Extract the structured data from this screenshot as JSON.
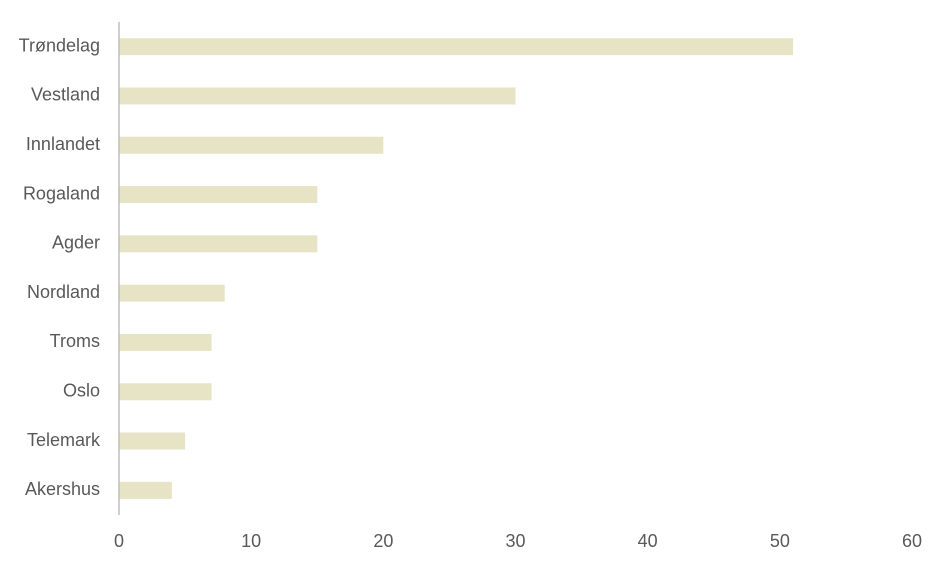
{
  "chart_data": {
    "type": "bar",
    "orientation": "horizontal",
    "categories": [
      "Trøndelag",
      "Vestland",
      "Innlandet",
      "Rogaland",
      "Agder",
      "Nordland",
      "Troms",
      "Oslo",
      "Telemark",
      "Akershus"
    ],
    "values": [
      51,
      30,
      20,
      15,
      15,
      8,
      7,
      7,
      5,
      4
    ],
    "color": "#e6e4c4",
    "xlim": [
      0,
      60
    ],
    "xticks": [
      0,
      10,
      20,
      30,
      40,
      50,
      60
    ],
    "grid": false
  }
}
